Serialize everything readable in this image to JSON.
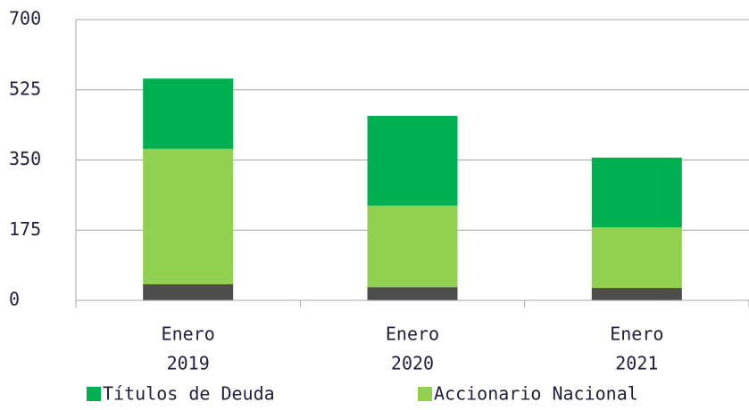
{
  "chart_data": {
    "type": "stacked_bar",
    "categories": [
      [
        "Enero",
        "2019"
      ],
      [
        "Enero",
        "2020"
      ],
      [
        "Enero",
        "2021"
      ]
    ],
    "series": [
      {
        "color": "#4d4d4d",
        "values": [
          40,
          33,
          31
        ]
      },
      {
        "name": "Accionario Nacional",
        "color": "#92d050",
        "values": [
          338,
          203,
          151
        ]
      },
      {
        "name": "Títulos de Deuda",
        "color": "#00b050",
        "values": [
          175,
          224,
          174
        ]
      }
    ],
    "legend_order": [
      2,
      1
    ],
    "ylim": [
      0,
      700
    ],
    "yticks": [
      0,
      175,
      350,
      525,
      700
    ],
    "grid": true
  }
}
